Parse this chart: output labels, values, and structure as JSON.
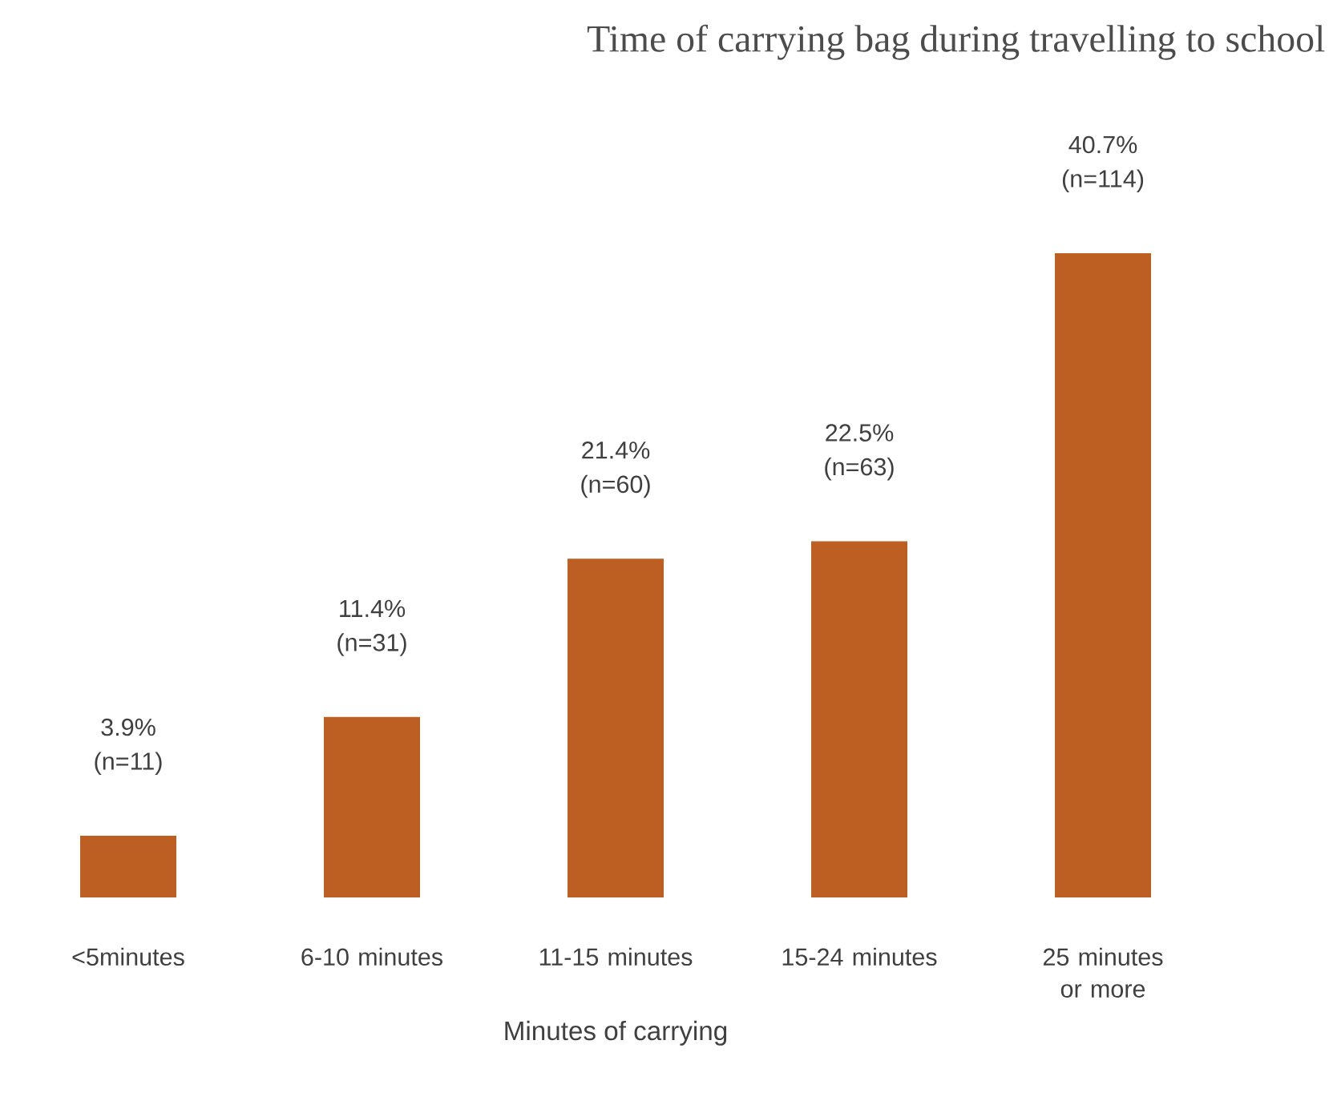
{
  "chart_data": {
    "type": "bar",
    "title": "Time of carrying bag during travelling to school",
    "xlabel": "Minutes of carrying",
    "categories": [
      "<5minutes",
      "6-10 minutes",
      "11-15 minutes",
      "15-24 minutes",
      "25 minutes or more"
    ],
    "values": [
      3.9,
      11.4,
      21.4,
      22.5,
      40.7
    ],
    "value_labels": [
      "3.9% (n=11)",
      "11.4% (n=31)",
      "21.4% (n=60)",
      "22.5% (n=63)",
      "40.7% (n=114)"
    ],
    "color": "#bd5f22"
  }
}
